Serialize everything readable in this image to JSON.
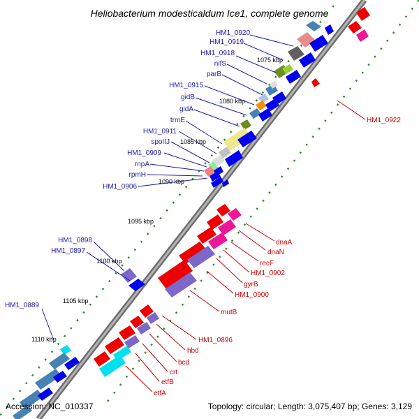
{
  "title": "Heliobacterium modesticaldum Ice1, complete genome",
  "footer": {
    "accession": "Accession: NC_010337",
    "summary": "Topology: circular; Length: 3,075,407 bp; Genes: 3,129"
  },
  "ticks": [
    "1075 kbp",
    "1080 kbp",
    "1085 kbp",
    "1090 kbp",
    "1095 kbp",
    "1100 kbp",
    "1105 kbp",
    "1110 kbp"
  ],
  "upper_labels": [
    "HM1_0920",
    "HM1_0919",
    "HM1_0918",
    "nifS",
    "parB",
    "HM1_0915",
    "gidB",
    "gidA",
    "trmE",
    "HM1_0911",
    "spoIIJ",
    "HM1_0909",
    "rnpA",
    "rpmH",
    "HM1_0906"
  ],
  "middle_labels": [
    "HM1_0898",
    "HM1_0897"
  ],
  "lower_left_label": "HM1_0889",
  "right_labels": [
    "HM1_0922",
    "dnaA",
    "dnaN",
    "recF",
    "HM1_0902",
    "gyrB",
    "HM1_0900",
    "mutB",
    "HM1_0896",
    "hbd",
    "bcd",
    "crt",
    "etfB",
    "etfA"
  ],
  "colors": {
    "backbone": "#808080",
    "tick_dots": "#2e8b2e",
    "blue_label": "#1a1aa6",
    "red_label": "#cc0000",
    "gene_blue": "#0000ee",
    "gene_red": "#ee0000",
    "gene_magenta": "#ee1599",
    "gene_purple": "#7b68c9",
    "gene_cyan": "#00e0ee",
    "gene_steel": "#4682b4"
  }
}
